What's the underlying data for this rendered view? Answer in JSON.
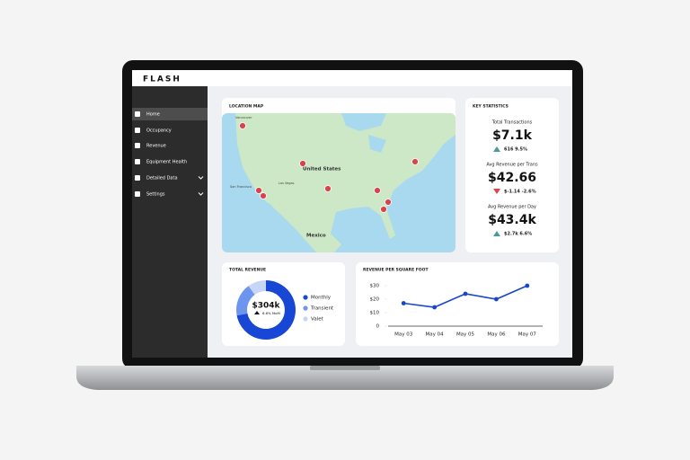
{
  "brand": "FLASH",
  "sidebar": {
    "items": [
      {
        "label": "Home",
        "active": true
      },
      {
        "label": "Occupancy",
        "active": false
      },
      {
        "label": "Revenue",
        "active": false
      },
      {
        "label": "Equipment Health",
        "active": false
      },
      {
        "label": "Detailed Data",
        "active": false,
        "expandable": true
      },
      {
        "label": "Settings",
        "active": false,
        "expandable": true
      }
    ]
  },
  "map": {
    "title": "LOCATION MAP",
    "labels": [
      "Vancouver",
      "San Francisco",
      "Las Vegas",
      "United States",
      "Mexico"
    ]
  },
  "key_statistics": {
    "title": "KEY STATISTICS",
    "stats": [
      {
        "label": "Total Transactions",
        "value": "$7.1k",
        "change": "616 9.5%",
        "direction": "up"
      },
      {
        "label": "Avg Revenue per Trans",
        "value": "$42.66",
        "change": "$-1.14 -2.6%",
        "direction": "down"
      },
      {
        "label": "Avg Revenue per Day",
        "value": "$43.4k",
        "change": "$2.7k 6.6%",
        "direction": "up"
      }
    ]
  },
  "total_revenue": {
    "title": "TOTAL REVENUE",
    "type": "donut",
    "center_value": "$304k",
    "center_change": "6.6% MoM",
    "series": [
      {
        "name": "Monthly",
        "color": "#1747d4",
        "value": 72
      },
      {
        "name": "Transient",
        "color": "#6e95ee",
        "value": 18
      },
      {
        "name": "Valet",
        "color": "#c8d6f6",
        "value": 10
      }
    ]
  },
  "revenue_per_sqft": {
    "title": "REVENUE PER SQUARE FOOT",
    "type": "line",
    "color": "#1a47c9",
    "categories": [
      "May 03",
      "May 04",
      "May 05",
      "May 06",
      "May 07"
    ],
    "values": [
      17,
      14,
      24,
      20,
      30
    ],
    "ylim": [
      0,
      30
    ],
    "yticks": [
      0,
      {
        "value": 10,
        "label": "$10"
      },
      {
        "value": 20,
        "label": "$20"
      },
      {
        "value": 30,
        "label": "$30"
      }
    ]
  }
}
